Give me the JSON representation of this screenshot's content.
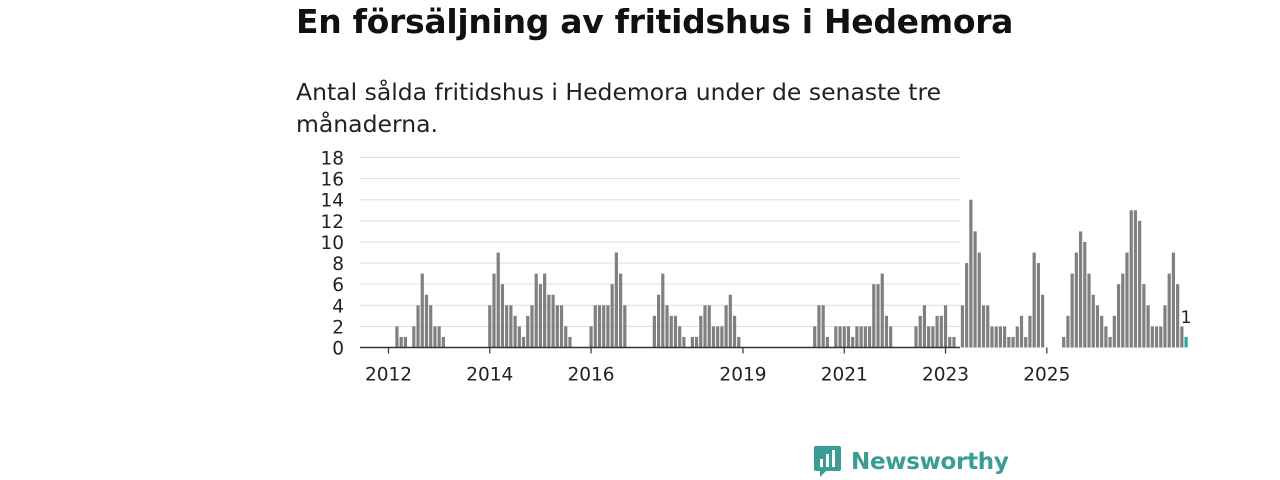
{
  "header": {
    "title": "En försäljning av fritidshus i Hedemora",
    "subtitle": "Antal sålda fritidshus i Hedemora under de senaste tre månaderna."
  },
  "brand": {
    "name": "Newsworthy"
  },
  "colors": {
    "bar": "#808080",
    "highlight": "#2ca6a0",
    "brand": "#3a9d93",
    "grid": "#dddddd",
    "axis": "#333333"
  },
  "chart_data": {
    "type": "bar",
    "x_unit": "month",
    "x_start": "2012-01",
    "values": [
      0,
      0,
      2,
      1,
      1,
      0,
      2,
      4,
      7,
      5,
      4,
      2,
      2,
      1,
      0,
      0,
      0,
      0,
      0,
      0,
      0,
      0,
      0,
      0,
      4,
      7,
      9,
      6,
      4,
      4,
      3,
      2,
      1,
      3,
      4,
      7,
      6,
      7,
      5,
      5,
      4,
      4,
      2,
      1,
      0,
      0,
      0,
      0,
      2,
      4,
      4,
      4,
      4,
      6,
      9,
      7,
      4,
      0,
      0,
      0,
      0,
      0,
      0,
      3,
      5,
      7,
      4,
      3,
      3,
      2,
      1,
      0,
      1,
      1,
      3,
      4,
      4,
      2,
      2,
      2,
      4,
      5,
      3,
      1,
      0,
      0,
      0,
      0,
      0,
      0,
      0,
      0,
      0,
      0,
      0,
      0,
      0,
      0,
      0,
      0,
      0,
      2,
      4,
      4,
      1,
      0,
      2,
      2,
      2,
      2,
      1,
      2,
      2,
      2,
      2,
      6,
      6,
      7,
      3,
      2,
      0,
      0,
      0,
      0,
      0,
      2,
      3,
      4,
      2,
      2,
      3,
      3,
      4,
      1,
      1,
      0,
      4,
      8,
      14,
      11,
      9,
      4,
      4,
      2,
      2,
      2,
      2,
      1,
      1,
      2,
      3,
      1,
      3,
      9,
      8,
      5,
      0,
      0,
      0,
      0,
      1,
      3,
      7,
      9,
      11,
      10,
      7,
      5,
      4,
      3,
      2,
      1,
      3,
      6,
      7,
      9,
      13,
      13,
      12,
      6,
      4,
      2,
      2,
      2,
      4,
      7,
      9,
      6,
      2,
      1
    ],
    "highlight_last": true,
    "last_value_label": "1",
    "x_ticks": [
      "2012",
      "2014",
      "2016",
      "2019",
      "2021",
      "2023",
      "2025"
    ],
    "y_ticks": [
      "0",
      "2",
      "4",
      "6",
      "8",
      "10",
      "12",
      "14",
      "16",
      "18"
    ],
    "ylim": [
      0,
      18
    ],
    "grid": true,
    "legend": "none"
  }
}
